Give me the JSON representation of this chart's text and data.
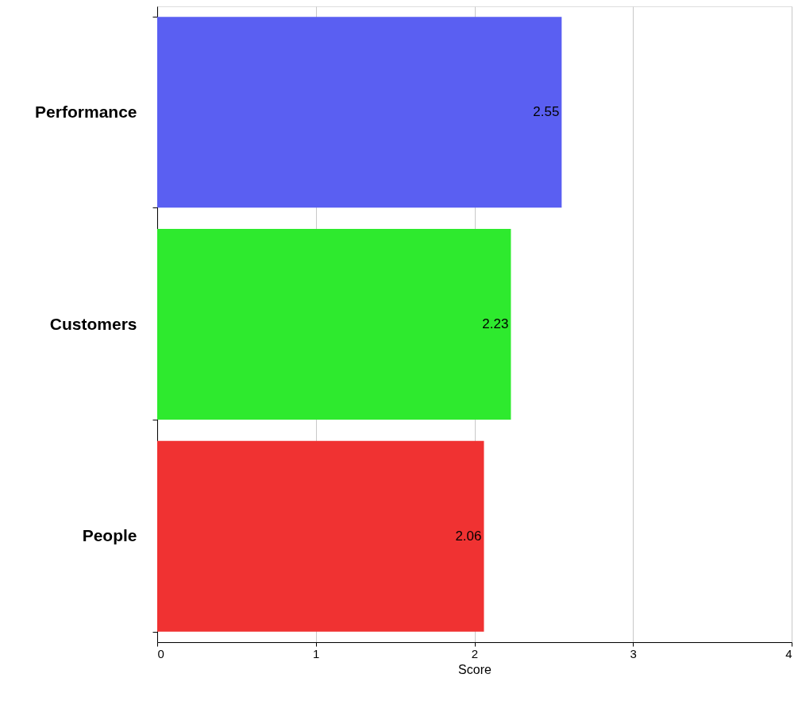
{
  "chart_data": {
    "type": "bar",
    "orientation": "horizontal",
    "xlabel": "Score",
    "categories": [
      "Performance",
      "Customers",
      "People"
    ],
    "values": [
      2.55,
      2.23,
      2.06
    ],
    "colors": [
      "#5a5ff2",
      "#2eea2e",
      "#f03232"
    ],
    "xlim": [
      0,
      4
    ],
    "xticks": [
      0,
      1,
      2,
      3,
      4
    ],
    "grid": "x",
    "data_labels": true
  }
}
